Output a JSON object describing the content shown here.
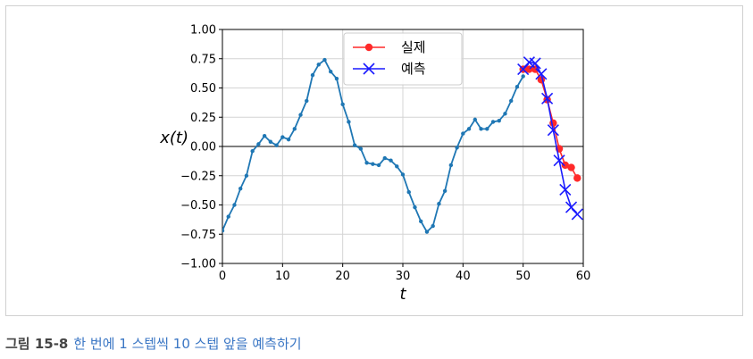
{
  "chart_data": {
    "type": "line",
    "title": "",
    "xlabel": "t",
    "ylabel": "x(t)",
    "xlim": [
      0,
      60
    ],
    "ylim": [
      -1.0,
      1.0
    ],
    "x_ticks": [
      "0",
      "10",
      "20",
      "30",
      "40",
      "50",
      "60"
    ],
    "y_ticks": [
      "1.00",
      "0.75",
      "0.50",
      "0.25",
      "0.00",
      "−0.25",
      "−0.50",
      "−0.75",
      "−1.00"
    ],
    "grid": true,
    "legend_position": "top-center",
    "zero_line": true,
    "series": [
      {
        "name": "",
        "color": "#1f77b4",
        "marker": "dot",
        "x": [
          0,
          1,
          2,
          3,
          4,
          5,
          6,
          7,
          8,
          9,
          10,
          11,
          12,
          13,
          14,
          15,
          16,
          17,
          18,
          19,
          20,
          21,
          22,
          23,
          24,
          25,
          26,
          27,
          28,
          29,
          30,
          31,
          32,
          33,
          34,
          35,
          36,
          37,
          38,
          39,
          40,
          41,
          42,
          43,
          44,
          45,
          46,
          47,
          48,
          49,
          50
        ],
        "y": [
          -0.72,
          -0.6,
          -0.5,
          -0.36,
          -0.25,
          -0.04,
          0.02,
          0.09,
          0.04,
          0.01,
          0.08,
          0.06,
          0.15,
          0.27,
          0.39,
          0.61,
          0.7,
          0.74,
          0.64,
          0.58,
          0.36,
          0.21,
          0.01,
          -0.02,
          -0.14,
          -0.15,
          -0.16,
          -0.1,
          -0.12,
          -0.17,
          -0.24,
          -0.39,
          -0.52,
          -0.64,
          -0.73,
          -0.68,
          -0.49,
          -0.38,
          -0.16,
          -0.01,
          0.11,
          0.15,
          0.23,
          0.15,
          0.15,
          0.21,
          0.22,
          0.28,
          0.39,
          0.51,
          0.6
        ]
      },
      {
        "name": "실제",
        "color": "#ff2a2a",
        "marker": "circle",
        "x": [
          50,
          51,
          52,
          53,
          54,
          55,
          56,
          57,
          58,
          59
        ],
        "y": [
          0.66,
          0.66,
          0.66,
          0.57,
          0.4,
          0.2,
          -0.02,
          -0.16,
          -0.18,
          -0.27
        ]
      },
      {
        "name": "예측",
        "color": "#1a1aff",
        "marker": "x",
        "x": [
          50,
          51,
          52,
          53,
          54,
          55,
          56,
          57,
          58,
          59
        ],
        "y": [
          0.66,
          0.72,
          0.71,
          0.62,
          0.41,
          0.14,
          -0.12,
          -0.37,
          -0.52,
          -0.58
        ]
      }
    ]
  },
  "caption": {
    "label": "그림 15-8",
    "text": "한 번에 1 스텝씩 10 스텝 앞을 예측하기"
  }
}
